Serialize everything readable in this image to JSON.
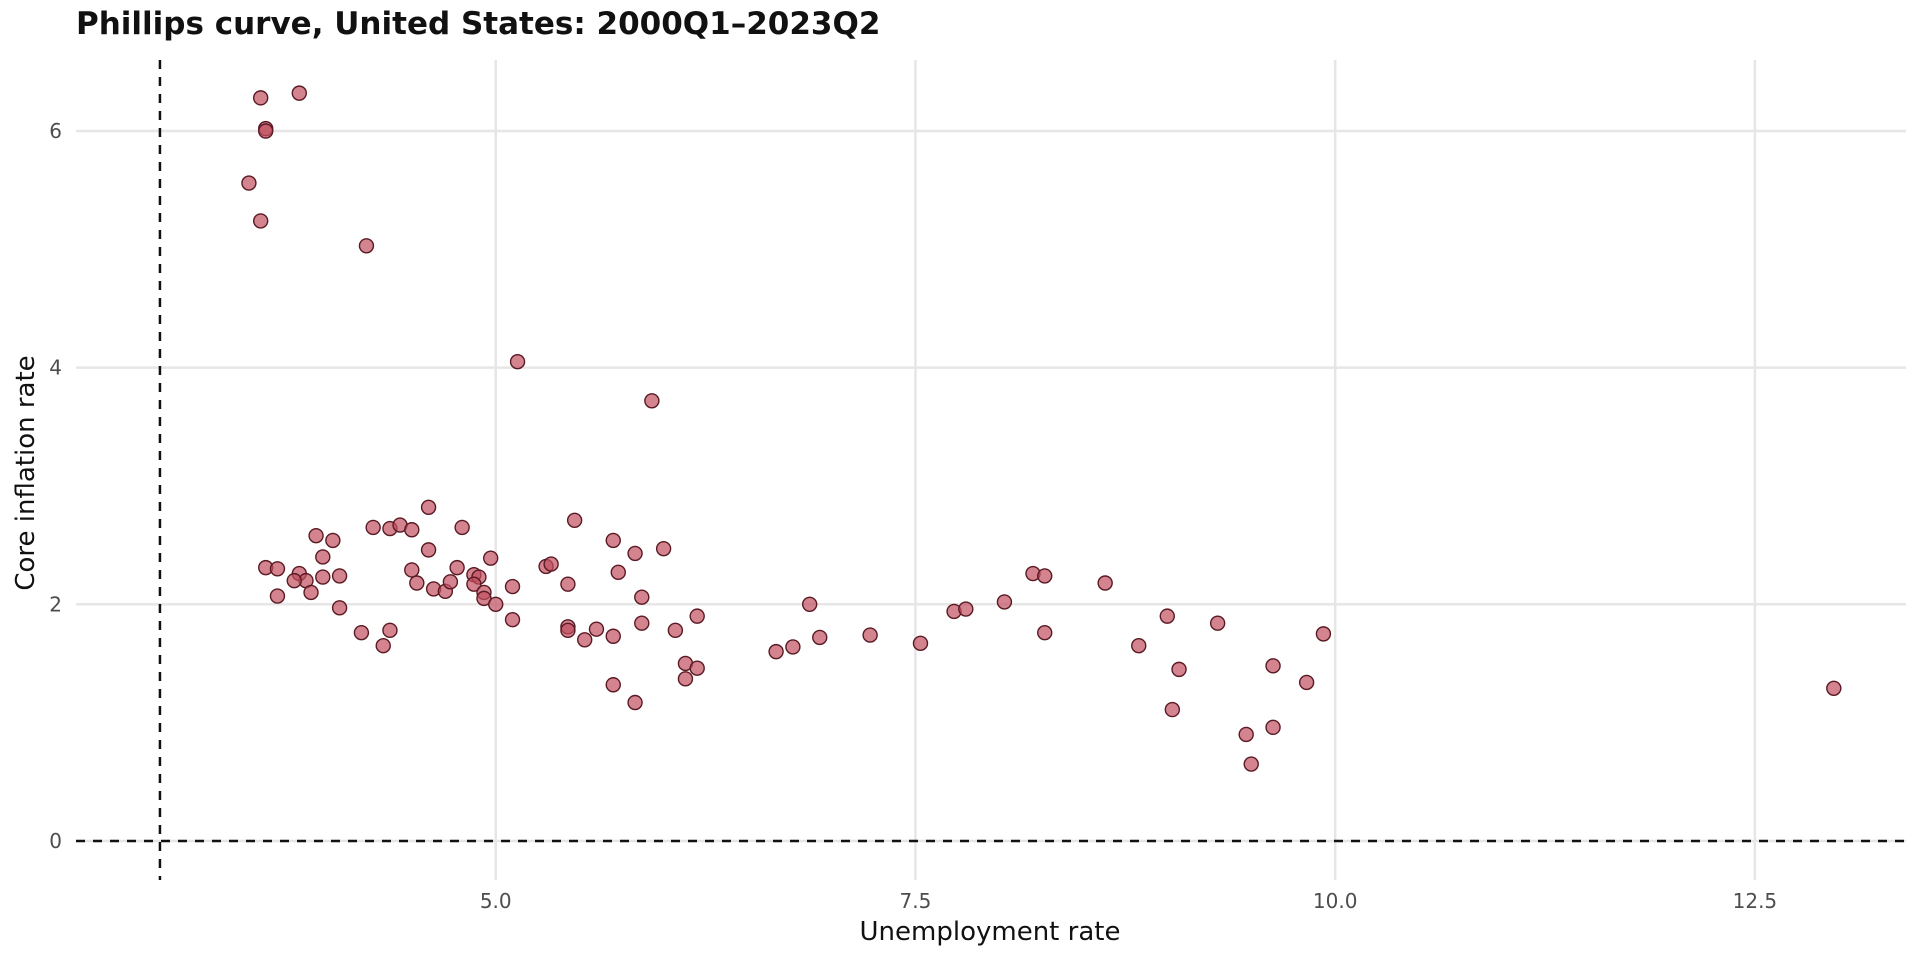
{
  "chart_data": {
    "type": "scatter",
    "title": "Phillips curve, United States: 2000Q1–2023Q2",
    "xlabel": "Unemployment rate",
    "ylabel": "Core inflation rate",
    "xlim": [
      2.5,
      13.4
    ],
    "ylim": [
      -0.33,
      6.6
    ],
    "x_ticks": [
      5.0,
      7.5,
      10.0,
      12.5
    ],
    "x_tick_labels": [
      "5.0",
      "7.5",
      "10.0",
      "12.5"
    ],
    "y_ticks": [
      0,
      2,
      4,
      6
    ],
    "y_tick_labels": [
      "0",
      "2",
      "4",
      "6"
    ],
    "grid": true,
    "reference_lines": {
      "vertical_x": 3.0,
      "horizontal_y": 0
    },
    "point_color": "#c0505f",
    "point_stroke": "#5a1a24",
    "points": [
      [
        3.6,
        6.28
      ],
      [
        3.83,
        6.32
      ],
      [
        3.63,
        6.02
      ],
      [
        3.63,
        6.0
      ],
      [
        3.53,
        5.56
      ],
      [
        3.6,
        5.24
      ],
      [
        4.23,
        5.03
      ],
      [
        5.13,
        4.05
      ],
      [
        5.93,
        3.72
      ],
      [
        3.93,
        2.58
      ],
      [
        4.03,
        2.54
      ],
      [
        3.63,
        2.31
      ],
      [
        3.7,
        2.3
      ],
      [
        3.83,
        2.26
      ],
      [
        3.87,
        2.2
      ],
      [
        3.8,
        2.2
      ],
      [
        3.97,
        2.4
      ],
      [
        3.97,
        2.23
      ],
      [
        4.07,
        2.24
      ],
      [
        3.9,
        2.1
      ],
      [
        3.7,
        2.07
      ],
      [
        4.07,
        1.97
      ],
      [
        4.27,
        2.65
      ],
      [
        4.37,
        2.64
      ],
      [
        4.43,
        2.67
      ],
      [
        4.5,
        2.63
      ],
      [
        4.6,
        2.82
      ],
      [
        4.6,
        2.46
      ],
      [
        4.5,
        2.29
      ],
      [
        4.53,
        2.18
      ],
      [
        4.63,
        2.13
      ],
      [
        4.7,
        2.11
      ],
      [
        4.73,
        2.19
      ],
      [
        4.77,
        2.31
      ],
      [
        4.8,
        2.65
      ],
      [
        4.87,
        2.25
      ],
      [
        4.9,
        2.23
      ],
      [
        4.87,
        2.17
      ],
      [
        4.93,
        2.1
      ],
      [
        4.93,
        2.05
      ],
      [
        4.97,
        2.39
      ],
      [
        5.0,
        2.0
      ],
      [
        5.1,
        2.15
      ],
      [
        5.1,
        1.87
      ],
      [
        4.2,
        1.76
      ],
      [
        4.33,
        1.65
      ],
      [
        4.37,
        1.78
      ],
      [
        5.3,
        2.32
      ],
      [
        5.33,
        2.34
      ],
      [
        5.43,
        2.17
      ],
      [
        5.47,
        2.71
      ],
      [
        5.43,
        1.81
      ],
      [
        5.43,
        1.78
      ],
      [
        5.53,
        1.7
      ],
      [
        5.6,
        1.79
      ],
      [
        5.7,
        2.54
      ],
      [
        5.73,
        2.27
      ],
      [
        5.7,
        1.73
      ],
      [
        5.7,
        1.32
      ],
      [
        5.83,
        2.43
      ],
      [
        5.87,
        2.06
      ],
      [
        5.87,
        1.84
      ],
      [
        5.83,
        1.17
      ],
      [
        6.0,
        2.47
      ],
      [
        6.07,
        1.78
      ],
      [
        6.13,
        1.5
      ],
      [
        6.13,
        1.37
      ],
      [
        6.2,
        1.9
      ],
      [
        6.2,
        1.46
      ],
      [
        6.67,
        1.6
      ],
      [
        6.77,
        1.64
      ],
      [
        6.87,
        2.0
      ],
      [
        6.93,
        1.72
      ],
      [
        7.23,
        1.74
      ],
      [
        7.53,
        1.67
      ],
      [
        7.73,
        1.94
      ],
      [
        7.8,
        1.96
      ],
      [
        8.03,
        2.02
      ],
      [
        8.2,
        2.26
      ],
      [
        8.27,
        2.24
      ],
      [
        8.27,
        1.76
      ],
      [
        8.63,
        2.18
      ],
      [
        8.83,
        1.65
      ],
      [
        9.0,
        1.9
      ],
      [
        9.03,
        1.11
      ],
      [
        9.07,
        1.45
      ],
      [
        9.3,
        1.84
      ],
      [
        9.47,
        0.9
      ],
      [
        9.5,
        0.65
      ],
      [
        9.63,
        1.48
      ],
      [
        9.63,
        0.96
      ],
      [
        9.83,
        1.34
      ],
      [
        9.93,
        1.75
      ],
      [
        12.97,
        1.29
      ]
    ]
  }
}
